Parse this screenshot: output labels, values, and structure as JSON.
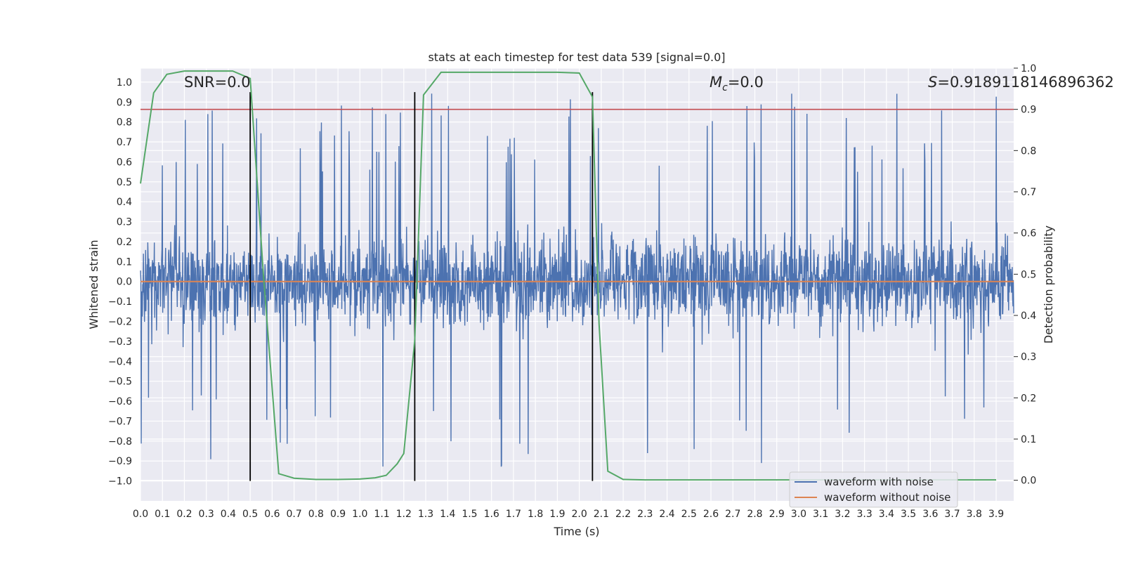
{
  "chart_data": {
    "type": "line",
    "title": "stats at each timestep for test data 539 [signal=0.0]",
    "xlabel": "Time (s)",
    "ylabel": "Whitened strain",
    "y2label": "Detection probability",
    "xlim": [
      0.0,
      3.98
    ],
    "ylim": [
      -1.1,
      1.07
    ],
    "y2lim": [
      -0.05,
      1.0
    ],
    "x_ticks": [
      0.0,
      0.1,
      0.2,
      0.3,
      0.4,
      0.5,
      0.6,
      0.7,
      0.8,
      0.9,
      1.0,
      1.1,
      1.2,
      1.3,
      1.4,
      1.5,
      1.6,
      1.7,
      1.8,
      1.9,
      2.0,
      2.1,
      2.2,
      2.3,
      2.4,
      2.5,
      2.6,
      2.7,
      2.8,
      2.9,
      3.0,
      3.1,
      3.2,
      3.3,
      3.4,
      3.5,
      3.6,
      3.7,
      3.8,
      3.9
    ],
    "x_tick_labels": [
      "0.0",
      "0.1",
      "0.2",
      "0.3",
      "0.4",
      "0.5",
      "0.6",
      "0.7",
      "0.8",
      "0.9",
      "1.0",
      "1.1",
      "1.2",
      "1.3",
      "1.4",
      "1.5",
      "1.6",
      "1.7",
      "1.8",
      "1.9",
      "2.0",
      "2.1",
      "2.2",
      "2.3",
      "2.4",
      "2.5",
      "2.6",
      "2.7",
      "2.8",
      "2.9",
      "3.0",
      "3.1",
      "3.2",
      "3.3",
      "3.4",
      "3.5",
      "3.6",
      "3.7",
      "3.8",
      "3.9"
    ],
    "y_ticks": [
      1.0,
      0.9,
      0.8,
      0.7,
      0.6,
      0.5,
      0.4,
      0.3,
      0.2,
      0.1,
      0.0,
      -0.1,
      -0.2,
      -0.3,
      -0.4,
      -0.5,
      -0.6,
      -0.7,
      -0.8,
      -0.9,
      -1.0
    ],
    "y_tick_labels": [
      "1.0",
      "0.9",
      "0.8",
      "0.7",
      "0.6",
      "0.5",
      "0.4",
      "0.3",
      "0.2",
      "0.1",
      "0.0",
      "−0.1",
      "−0.2",
      "−0.3",
      "−0.4",
      "−0.5",
      "−0.6",
      "−0.7",
      "−0.8",
      "−0.9",
      "−1.0"
    ],
    "y2_ticks": [
      1.0,
      0.9,
      0.8,
      0.7,
      0.6,
      0.5,
      0.4,
      0.3,
      0.2,
      0.1,
      0.0
    ],
    "y2_tick_labels": [
      "1.0",
      "0.9",
      "0.8",
      "0.7",
      "0.6",
      "0.5",
      "0.4",
      "0.3",
      "0.2",
      "0.1",
      "0.0"
    ],
    "grid": true,
    "legend_position": "lower-right",
    "series": [
      {
        "name": "waveform with noise",
        "color": "#4c72b0",
        "axis": "left",
        "kind": "noise",
        "x_range": [
          0.0,
          3.98
        ],
        "amplitude_range": [
          -1.0,
          0.95
        ]
      },
      {
        "name": "waveform without noise",
        "color": "#dd8452",
        "axis": "left",
        "x": [
          0.0,
          3.98
        ],
        "y": [
          0.0,
          0.0
        ]
      },
      {
        "name": "",
        "color": "#55a868",
        "axis": "right",
        "x": [
          0.0,
          0.06,
          0.12,
          0.2,
          0.3,
          0.42,
          0.5,
          0.56,
          0.63,
          0.7,
          0.8,
          0.9,
          1.0,
          1.07,
          1.12,
          1.17,
          1.2,
          1.25,
          1.29,
          1.37,
          1.5,
          1.7,
          1.9,
          2.0,
          2.06,
          2.09,
          2.13,
          2.2,
          2.3,
          3.0,
          3.5,
          3.9
        ],
        "y": [
          0.72,
          0.94,
          0.985,
          0.993,
          0.993,
          0.993,
          0.975,
          0.5,
          0.016,
          0.005,
          0.002,
          0.002,
          0.003,
          0.006,
          0.012,
          0.04,
          0.065,
          0.34,
          0.935,
          0.99,
          0.99,
          0.99,
          0.99,
          0.988,
          0.93,
          0.38,
          0.022,
          0.002,
          0.001,
          0.001,
          0.001,
          0.001
        ]
      }
    ],
    "threshold": {
      "axis": "right",
      "y": 0.9,
      "color": "#c44e52"
    },
    "vlines": {
      "x": [
        0.5,
        1.25,
        2.06
      ],
      "y_range": [
        -1.0,
        0.95
      ],
      "color": "#000000"
    },
    "annotations": {
      "snr": "SNR=0.0",
      "mc_symbol": "M",
      "mc_sub": "c",
      "mc_value": "=0.0",
      "s_symbol": "S",
      "s_value": "=0.9189118146896362"
    }
  }
}
